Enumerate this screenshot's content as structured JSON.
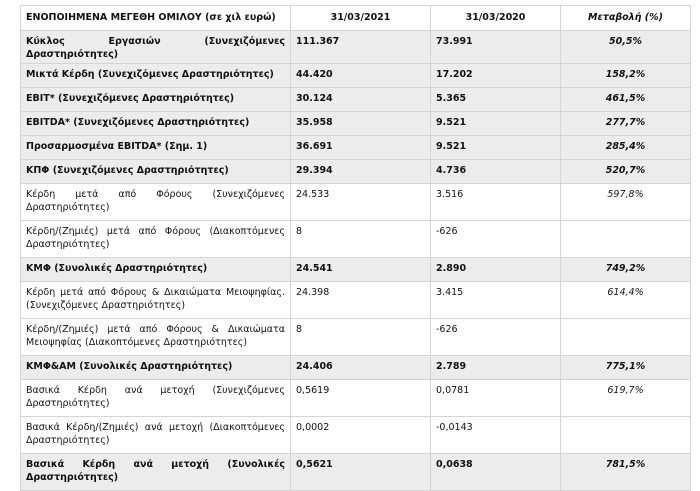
{
  "table": {
    "header": [
      "ΕΝΟΠΟΙΗΜΕΝΑ ΜΕΓΕΘΗ ΟΜΙΛΟΥ (σε χιλ ευρώ)",
      "31/03/2021",
      "31/03/2020",
      "Μεταβολή (%)"
    ],
    "rows": [
      {
        "bold": true,
        "cells": [
          "Κύκλος Εργασιών (Συνεχιζόμενες Δραστηριότητες)",
          "111.367",
          "73.991",
          "50,5%"
        ]
      },
      {
        "bold": true,
        "cells": [
          "Μικτά Κέρδη (Συνεχιζόμενες Δραστηριότητες)",
          "44.420",
          "17.202",
          "158,2%"
        ]
      },
      {
        "bold": true,
        "cells": [
          "EBIT* (Συνεχιζόμενες Δραστηριότητες)",
          "30.124",
          "5.365",
          "461,5%"
        ]
      },
      {
        "bold": true,
        "cells": [
          "EBITDA* (Συνεχιζόμενες Δραστηριότητες)",
          "35.958",
          "9.521",
          "277,7%"
        ]
      },
      {
        "bold": true,
        "cells": [
          "Προσαρμοσμένα EBITDA* (Σημ. 1)",
          "36.691",
          "9.521",
          "285,4%"
        ]
      },
      {
        "bold": true,
        "cells": [
          "ΚΠΦ (Συνεχιζόμενες Δραστηριότητες)",
          "29.394",
          "4.736",
          "520,7%"
        ]
      },
      {
        "bold": false,
        "cells": [
          "Κέρδη μετά από Φόρους (Συνεχιζόμενες Δραστηριότητες)",
          "24.533",
          "3.516",
          "597,8%"
        ]
      },
      {
        "bold": false,
        "cells": [
          "Κέρδη/(Ζημιές) μετά από Φόρους (Διακοπτόμενες Δραστηριότητες)",
          "8",
          "-626"
        ]
      },
      {
        "bold": true,
        "cells": [
          "ΚΜΦ (Συνολικές Δραστηριότητες)",
          "24.541",
          "2.890",
          "749,2%"
        ]
      },
      {
        "bold": false,
        "cells": [
          "Κέρδη μετά από Φόρους & Δικαιώματα Μειοψηφίας. (Συνεχιζόμενες Δραστηριότητες)",
          "24.398",
          "3.415",
          "614,4%"
        ]
      },
      {
        "bold": false,
        "cells": [
          "Κέρδη/(Ζημιές) μετά από Φόρους & Δικαιώματα Μειοψηφίας (Διακοπτόμενες Δραστηριότητες)",
          "8",
          "-626"
        ]
      },
      {
        "bold": true,
        "cells": [
          "ΚΜΦ&ΑΜ (Συνολικές Δραστηριότητες)",
          "24.406",
          "2.789",
          "775,1%"
        ]
      },
      {
        "bold": false,
        "cells": [
          "Βασικά Κέρδη ανά μετοχή (Συνεχιζόμενες Δραστηριότητες)",
          "0,5619",
          "0,0781",
          "619,7%"
        ]
      },
      {
        "bold": false,
        "cells": [
          "Βασικά Κέρδη/(Ζημιές) ανά μετοχή (Διακοπτόμενες Δραστηριότητες)",
          "0,0002",
          "-0,0143"
        ]
      },
      {
        "bold": true,
        "cells": [
          "Βασικά Κέρδη ανά μετοχή (Συνολικές Δραστηριότητες)",
          "0,5621",
          "0,0638",
          "781,5%"
        ]
      }
    ]
  }
}
